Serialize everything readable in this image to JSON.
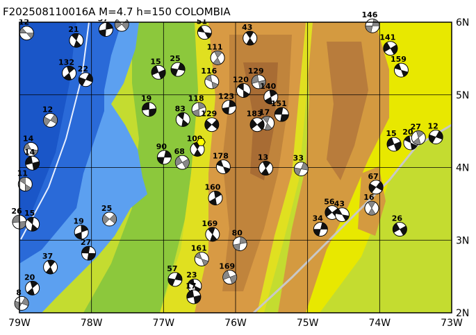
{
  "chart_data": {
    "type": "map",
    "title": "F202508110016A M=4.7 h=150 COLOMBIA",
    "xlim": [
      -79,
      -73
    ],
    "ylim": [
      2,
      6
    ],
    "xticks": [
      {
        "value": -79,
        "label": "79W"
      },
      {
        "value": -78,
        "label": "78W"
      },
      {
        "value": -77,
        "label": "77W"
      },
      {
        "value": -76,
        "label": "76W"
      },
      {
        "value": -75,
        "label": "75W"
      },
      {
        "value": -74,
        "label": "74W"
      },
      {
        "value": -73,
        "label": "73W"
      }
    ],
    "yticks": [
      {
        "value": 2,
        "label": "2N"
      },
      {
        "value": 3,
        "label": "3N"
      },
      {
        "value": 4,
        "label": "4N"
      },
      {
        "value": 5,
        "label": "5N"
      },
      {
        "value": 6,
        "label": "6N"
      }
    ],
    "grid": true,
    "main_event": {
      "lon": -76.48,
      "lat": 4.35
    },
    "events": {
      "lon": [
        -78.9,
        -78.21,
        -77.8,
        -77.58,
        -76.43,
        -75.8,
        -74.1,
        -73.85,
        -73.7,
        -76.25,
        -76.8,
        -77.07,
        -76.33,
        -78.31,
        -78.08,
        -75.68,
        -75.89,
        -75.51,
        -78.57,
        -77.2,
        -76.73,
        -76.51,
        -76.33,
        -75.36,
        -75.56,
        -76.09,
        -75.7,
        -78.84,
        -76.53,
        -76.99,
        -76.74,
        -76.17,
        -75.58,
        -75.09,
        -73.8,
        -73.57,
        -73.46,
        -73.22,
        -78.82,
        -78.92,
        -76.28,
        -74.05,
        -79.0,
        -78.82,
        -78.14,
        -77.75,
        -78.04,
        -76.32,
        -75.94,
        -74.66,
        -74.52,
        -74.11,
        -74.82,
        -73.72,
        -76.47,
        -78.57,
        -76.84,
        -76.08,
        -76.57,
        -78.82,
        -78.97,
        -76.58
      ],
      "lat": [
        5.85,
        5.75,
        5.9,
        5.97,
        5.86,
        5.78,
        5.95,
        5.64,
        5.34,
        5.51,
        5.35,
        5.31,
        5.18,
        5.3,
        5.21,
        5.18,
        5.06,
        4.97,
        4.65,
        4.8,
        4.66,
        4.8,
        4.59,
        4.73,
        4.61,
        4.83,
        4.59,
        4.25,
        4.25,
        4.14,
        4.07,
        4.01,
        3.99,
        3.98,
        4.32,
        4.34,
        4.41,
        4.42,
        4.06,
        3.77,
        3.58,
        3.73,
        3.25,
        3.22,
        3.11,
        3.29,
        2.82,
        3.08,
        2.95,
        3.38,
        3.35,
        3.44,
        3.15,
        3.15,
        2.74,
        2.63,
        2.46,
        2.49,
        2.37,
        2.34,
        2.13,
        2.22
      ],
      "depths": [
        12,
        21,
        37,
        15,
        51,
        43,
        146,
        141,
        159,
        111,
        25,
        15,
        116,
        132,
        22,
        129,
        120,
        140,
        12,
        19,
        83,
        118,
        129,
        151,
        17,
        123,
        183,
        14,
        109,
        90,
        68,
        178,
        13,
        33,
        15,
        20,
        27,
        12,
        14,
        11,
        160,
        67,
        26,
        15,
        19,
        25,
        27,
        169,
        80,
        56,
        43,
        16,
        34,
        26,
        161,
        37,
        57,
        169,
        23,
        20,
        8,
        17
      ]
    }
  }
}
